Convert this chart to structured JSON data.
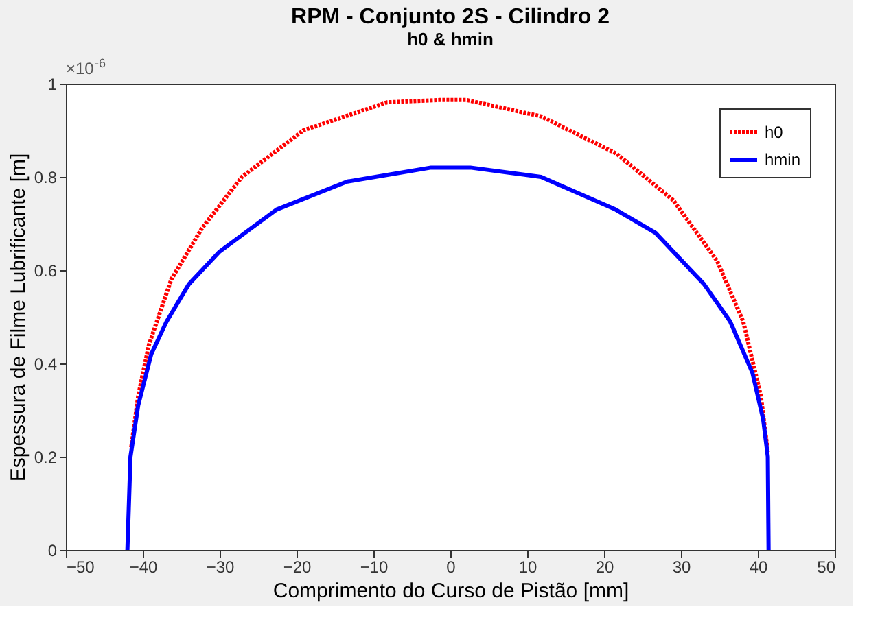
{
  "chart_data": {
    "type": "line",
    "title": "RPM - Conjunto 2S - Cilindro 2",
    "subtitle": "h0 & hmin",
    "xlabel": "Comprimento do Curso de Pistão [mm]",
    "ylabel": "Espessura de Filme Lubrificante [m]",
    "annotations": [
      "×10$^{-6}$"
    ],
    "xlim": [
      -50,
      50
    ],
    "xticks": [
      -50,
      -40,
      -30,
      -20,
      -10,
      0,
      10,
      20,
      30,
      40,
      50
    ],
    "ylim": [
      0,
      1
    ],
    "yticks": [
      0,
      0.2,
      0.4,
      0.6,
      0.8,
      1
    ],
    "grid": false,
    "legend": "top right",
    "marker": "none",
    "series": [
      {
        "name": "h0",
        "color": "#ff0000",
        "line_style": "dotted",
        "x": [
          -41.5,
          -40.6,
          -39.2,
          -36.3,
          -32.3,
          -27.1,
          -19.1,
          -8.2,
          -1.4,
          2.1,
          11.8,
          21.6,
          29.0,
          34.7,
          38.1,
          40.4,
          41.3
        ],
        "values": [
          0.22,
          0.33,
          0.44,
          0.58,
          0.69,
          0.8,
          0.9,
          0.96,
          0.965,
          0.965,
          0.93,
          0.85,
          0.75,
          0.62,
          0.49,
          0.33,
          0.21
        ]
      },
      {
        "name": "hmin",
        "color": "#0000ff",
        "line_style": "solid",
        "x": [
          -42.0,
          -41.6,
          -40.6,
          -38.9,
          -36.9,
          -34.0,
          -30.0,
          -22.6,
          -13.4,
          -2.5,
          2.6,
          11.8,
          21.5,
          26.7,
          33.0,
          36.4,
          39.3,
          40.7,
          41.3,
          41.4
        ],
        "values": [
          0,
          0.2,
          0.31,
          0.42,
          0.49,
          0.57,
          0.64,
          0.73,
          0.79,
          0.82,
          0.82,
          0.8,
          0.73,
          0.68,
          0.57,
          0.49,
          0.38,
          0.28,
          0.2,
          0
        ]
      }
    ]
  }
}
